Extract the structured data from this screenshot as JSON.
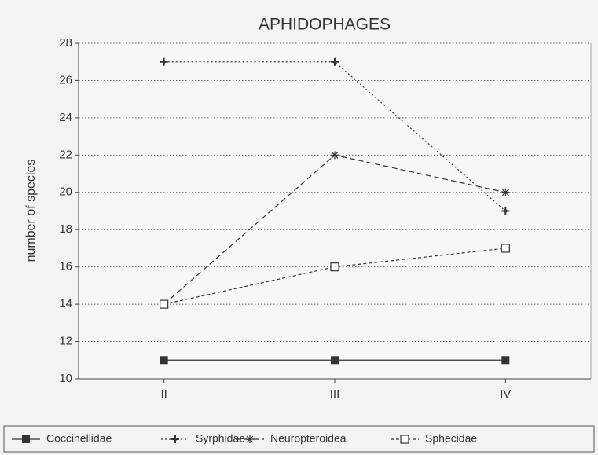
{
  "chart_data": {
    "type": "line",
    "title": "APHIDOPHAGES",
    "y_label": "number of species",
    "categories": [
      "II",
      "III",
      "IV"
    ],
    "series": [
      {
        "name": "Coccinellidae",
        "color": "#333333",
        "marker": "filled-square",
        "dash": "solid",
        "values": [
          11,
          11,
          11
        ]
      },
      {
        "name": "Syrphidae",
        "color": "#333333",
        "marker": "plus",
        "dash": "dotted",
        "values": [
          27,
          27,
          19
        ]
      },
      {
        "name": "Neuropteroidea",
        "color": "#333333",
        "marker": "asterisk",
        "dash": "dashed",
        "values": [
          14,
          22,
          20
        ]
      },
      {
        "name": "Sphecidae",
        "color": "#333333",
        "marker": "open-square",
        "dash": "short-dashed",
        "values": [
          14,
          16,
          17
        ]
      }
    ],
    "ylim": [
      10,
      28
    ],
    "yticks": [
      10,
      12,
      14,
      16,
      18,
      20,
      22,
      24,
      26,
      28
    ],
    "grid": true,
    "legend": "bottom"
  }
}
